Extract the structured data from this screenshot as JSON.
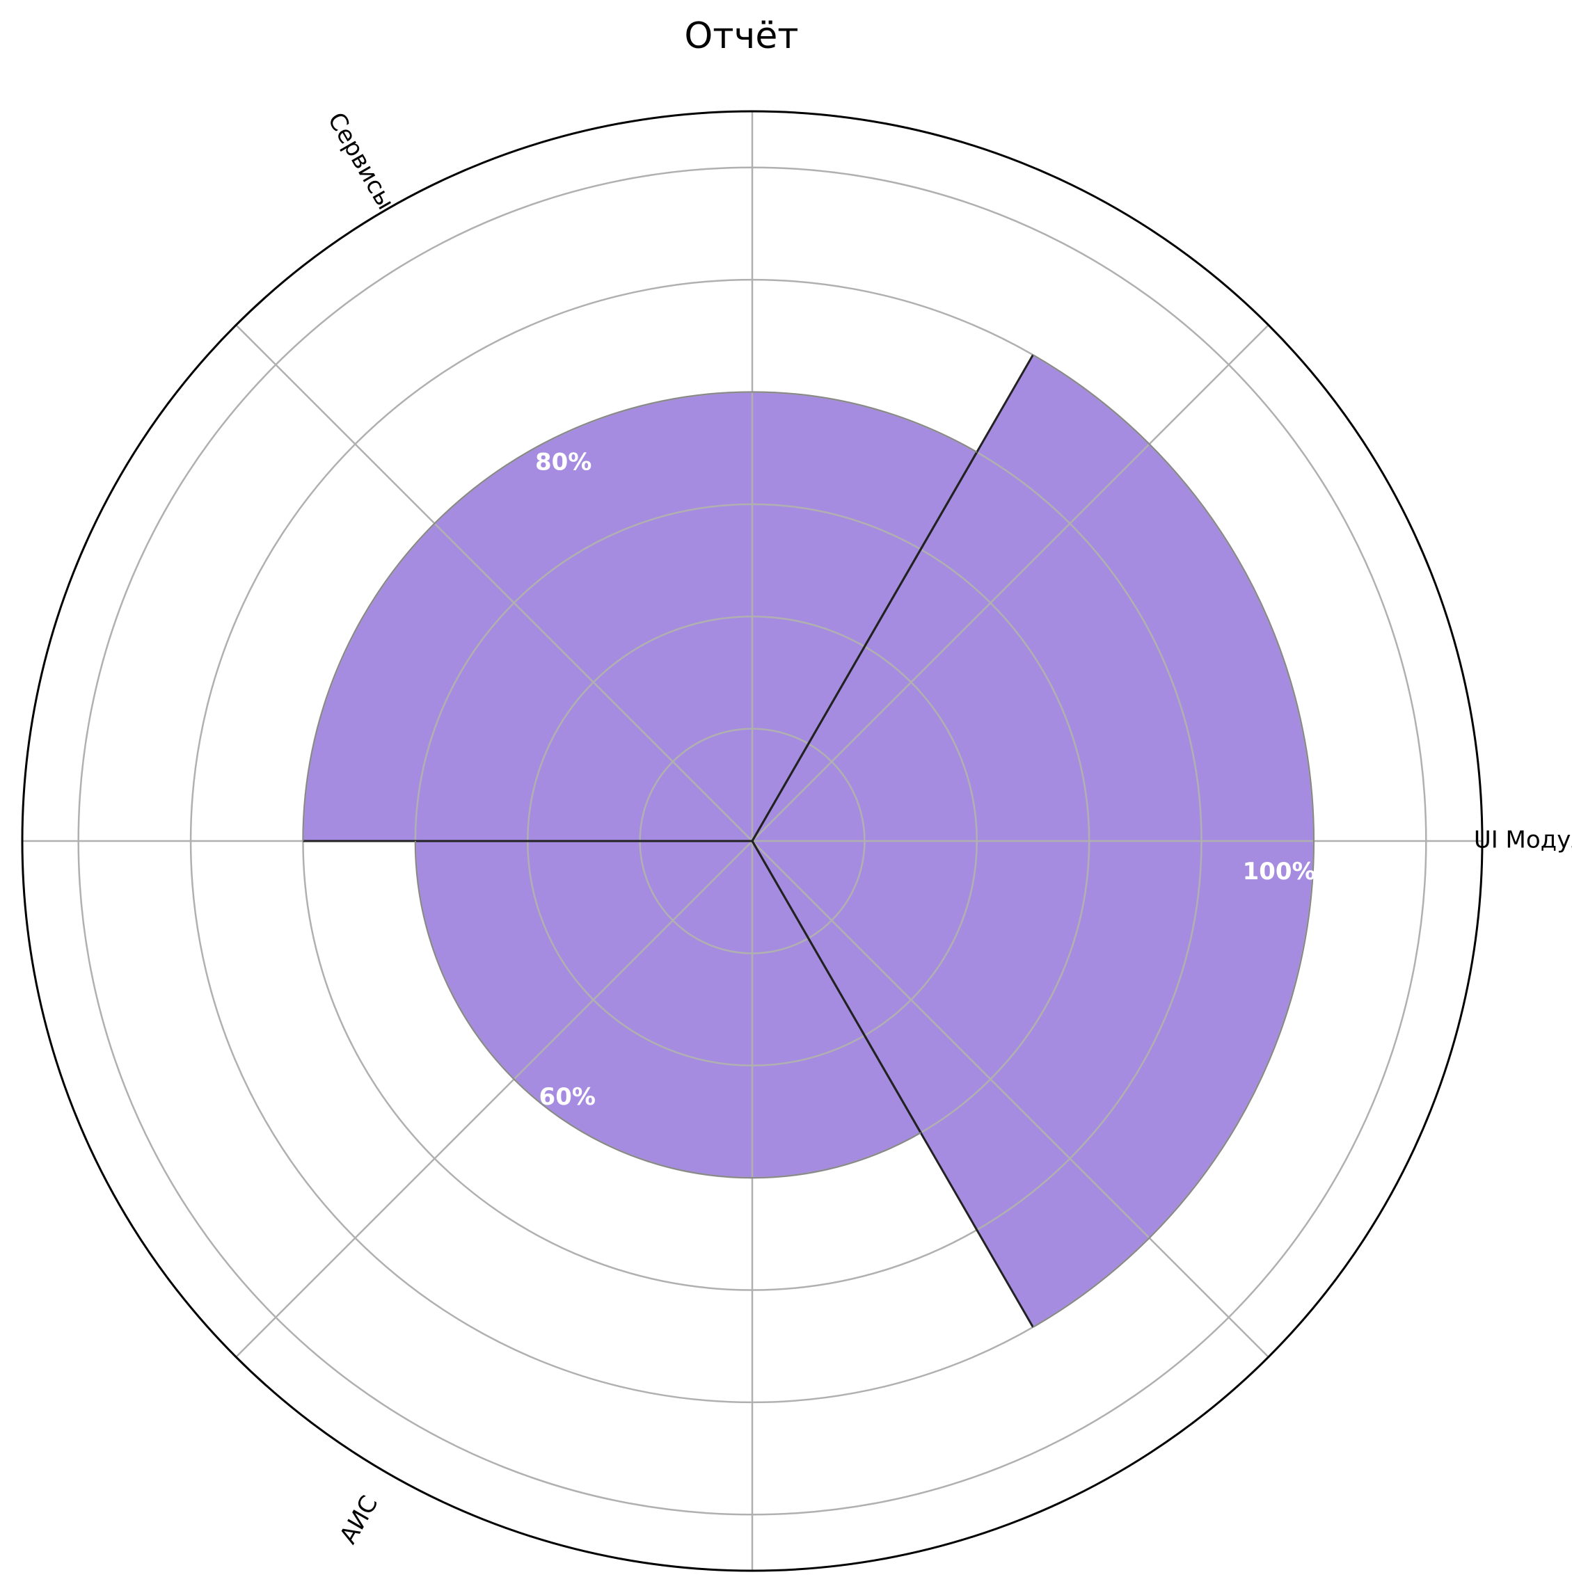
{
  "chart_data": {
    "type": "polar-bar",
    "title": "Отчёт",
    "categories": [
      "UI Модуля",
      "Сервисы",
      "АИС"
    ],
    "values": [
      100,
      80,
      60
    ],
    "value_labels": [
      "100%",
      "80%",
      "60%"
    ],
    "rlim": [
      0,
      130
    ],
    "r_gridlines": [
      20,
      40,
      60,
      80,
      100,
      120
    ],
    "theta_gridline_count": 8,
    "grid": true,
    "bar_color": "#a68ce0",
    "edge_color": "#222222"
  }
}
